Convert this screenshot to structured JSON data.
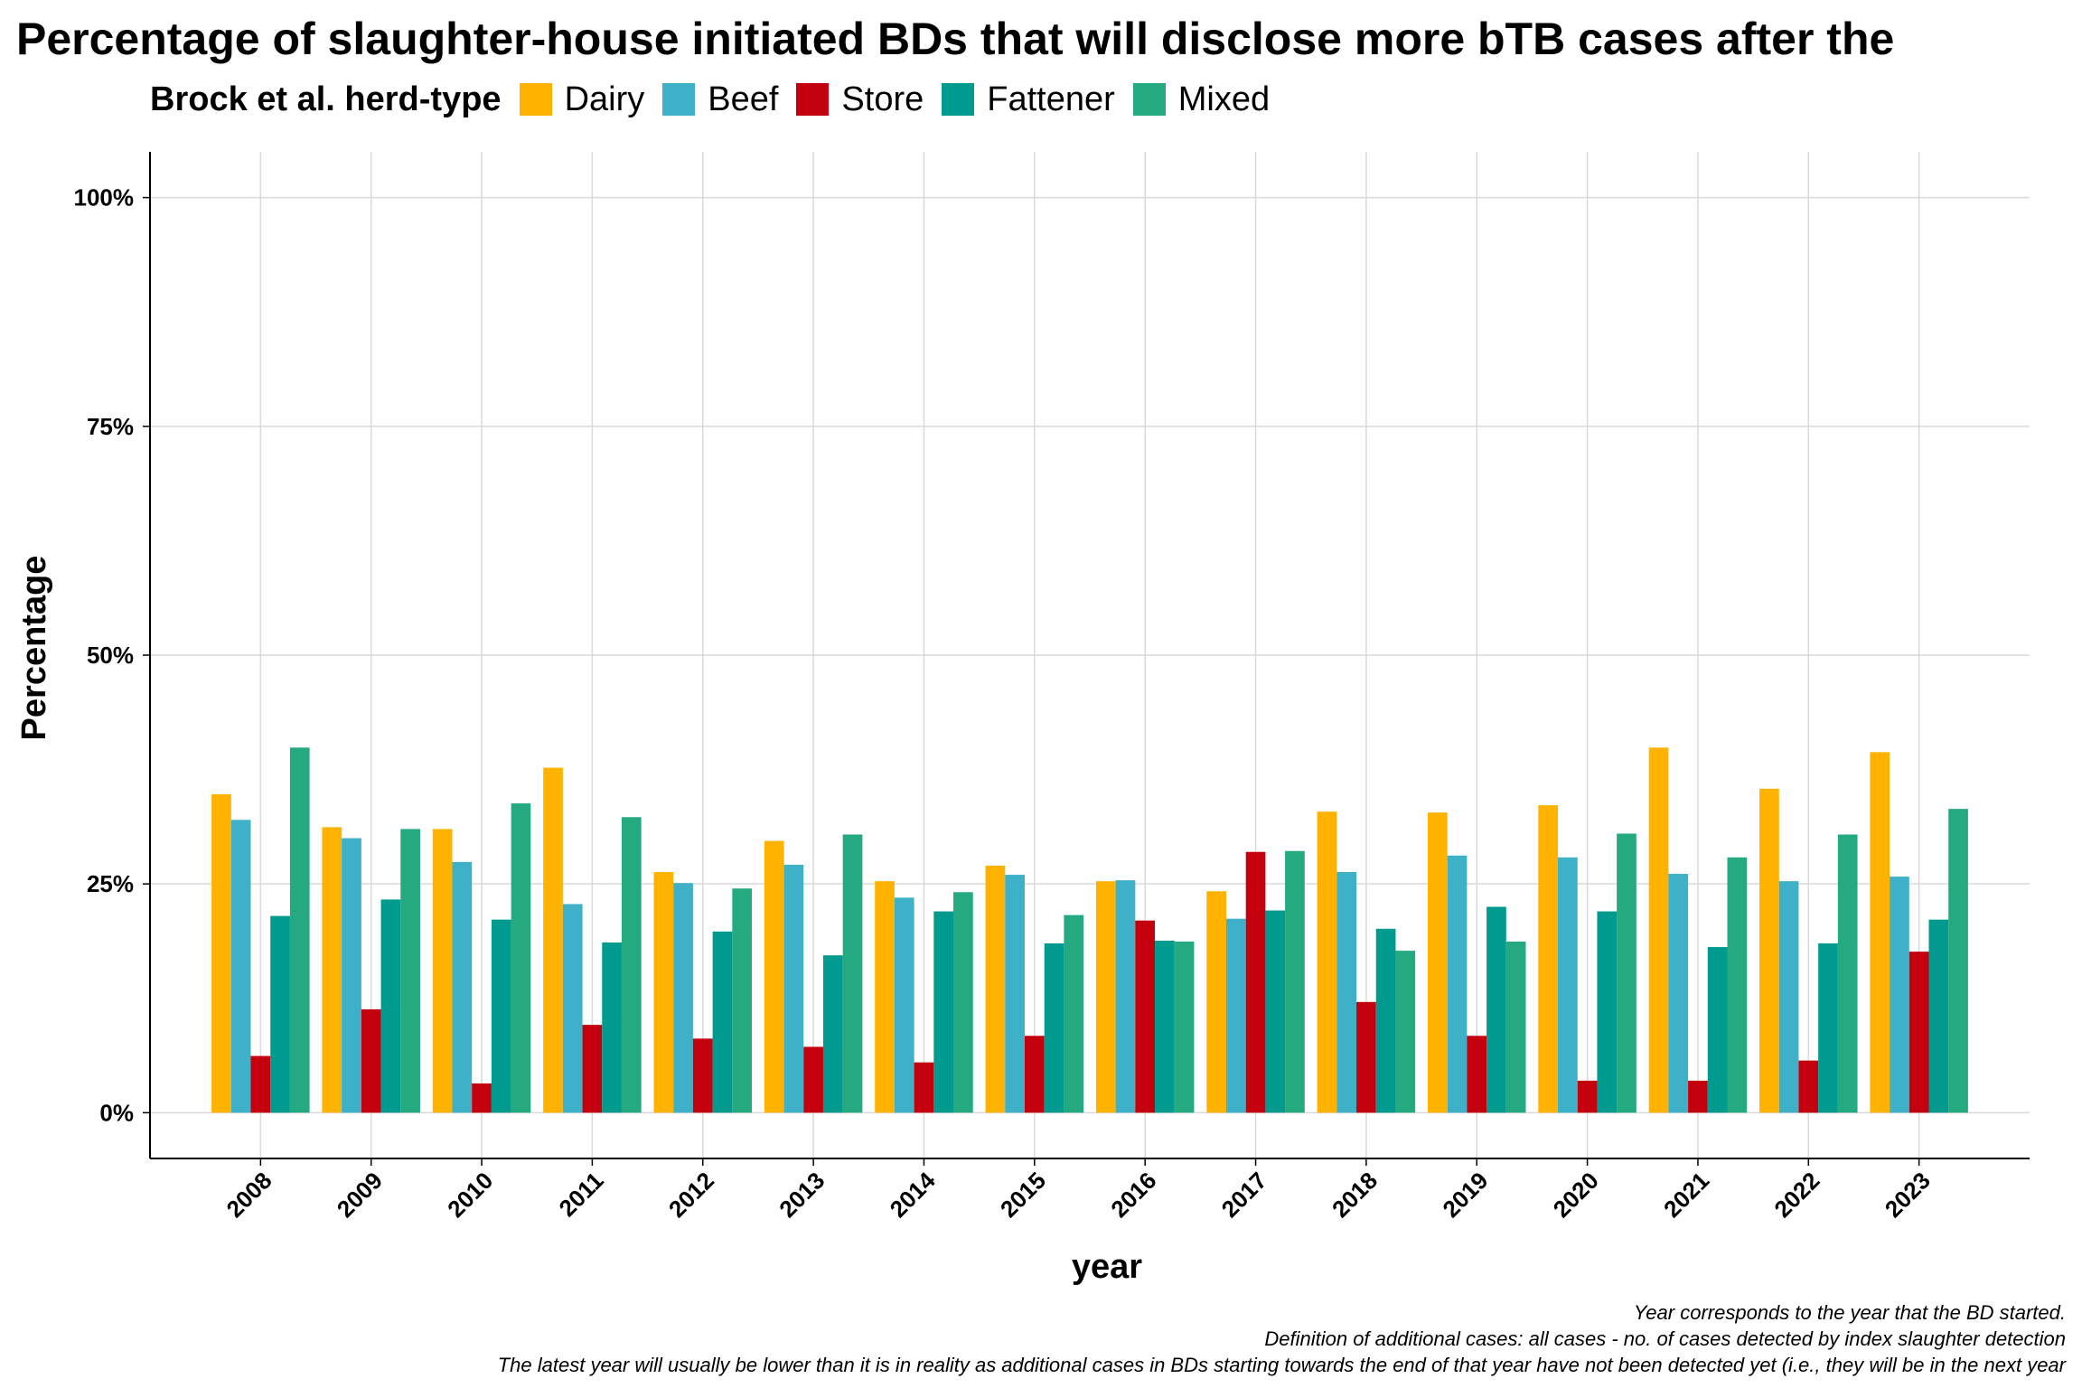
{
  "chart_data": {
    "type": "bar",
    "title": "Percentage of slaughter-house initiated BDs that will disclose more bTB cases after the",
    "xlabel": "year",
    "ylabel": "Percentage",
    "legend_title": "Brock et al. herd-type",
    "legend_position": "top-left",
    "grid": true,
    "ylim": [
      -5,
      105
    ],
    "yticks": [
      "0%",
      "25%",
      "50%",
      "75%",
      "100%"
    ],
    "categories": [
      "2008",
      "2009",
      "2010",
      "2011",
      "2012",
      "2013",
      "2014",
      "2015",
      "2016",
      "2017",
      "2018",
      "2019",
      "2020",
      "2021",
      "2022",
      "2023"
    ],
    "series": [
      {
        "name": "Dairy",
        "color": "#FFB200",
        "values": [
          34.8,
          31.2,
          31.0,
          37.7,
          26.3,
          29.7,
          25.3,
          27.0,
          25.3,
          24.2,
          32.9,
          32.8,
          33.6,
          39.9,
          35.4,
          39.4
        ]
      },
      {
        "name": "Beef",
        "color": "#3EB0C8",
        "values": [
          32.0,
          30.0,
          27.4,
          22.8,
          25.1,
          27.1,
          23.5,
          26.0,
          25.4,
          21.2,
          26.3,
          28.1,
          27.9,
          26.1,
          25.3,
          25.8
        ]
      },
      {
        "name": "Store",
        "color": "#C4000E",
        "values": [
          6.2,
          11.3,
          3.2,
          9.6,
          8.1,
          7.2,
          5.5,
          8.4,
          21.0,
          28.5,
          12.1,
          8.4,
          3.5,
          3.5,
          5.7,
          17.6
        ]
      },
      {
        "name": "Fattener",
        "color": "#009A8F",
        "values": [
          21.5,
          23.3,
          21.1,
          18.6,
          19.8,
          17.2,
          22.0,
          18.5,
          18.8,
          22.1,
          20.1,
          22.5,
          22.0,
          18.1,
          18.5,
          21.1
        ]
      },
      {
        "name": "Mixed",
        "color": "#25A981",
        "values": [
          39.9,
          31.0,
          33.8,
          32.3,
          24.5,
          30.4,
          24.1,
          21.6,
          18.7,
          28.6,
          17.7,
          18.7,
          30.5,
          27.9,
          30.4,
          33.2
        ]
      }
    ]
  },
  "caption": {
    "line1": "Year corresponds to the year that the BD started.",
    "line2": "Definition of additional cases: all cases - no. of cases detected by index slaughter detection",
    "line3": "The latest year will usually be lower than it is in reality as additional cases in  BDs starting towards the end of that year have not been detected yet (i.e., they will be in the next year"
  }
}
